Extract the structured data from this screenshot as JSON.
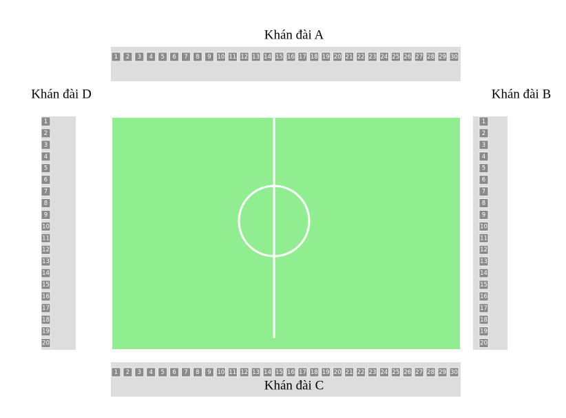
{
  "stands": [
    {
      "label": "Khán đài A",
      "seats": [
        1,
        2,
        3,
        4,
        5,
        6,
        7,
        8,
        9,
        10,
        11,
        12,
        13,
        14,
        15,
        16,
        17,
        18,
        19,
        20,
        21,
        22,
        23,
        24,
        25,
        26,
        27,
        28,
        29,
        30
      ]
    },
    {
      "label": "Khán đài B",
      "seats": [
        1,
        2,
        3,
        4,
        5,
        6,
        7,
        8,
        9,
        10,
        11,
        12,
        13,
        14,
        15,
        16,
        17,
        18,
        19,
        20
      ]
    },
    {
      "label": "Khán đài C",
      "seats": [
        1,
        2,
        3,
        4,
        5,
        6,
        7,
        8,
        9,
        10,
        11,
        12,
        13,
        14,
        15,
        16,
        17,
        18,
        19,
        20,
        21,
        22,
        23,
        24,
        25,
        26,
        27,
        28,
        29,
        30
      ]
    },
    {
      "label": "Khán đài D",
      "seats": [
        1,
        2,
        3,
        4,
        5,
        6,
        7,
        8,
        9,
        10,
        11,
        12,
        13,
        14,
        15,
        16,
        17,
        18,
        19,
        20
      ]
    }
  ]
}
